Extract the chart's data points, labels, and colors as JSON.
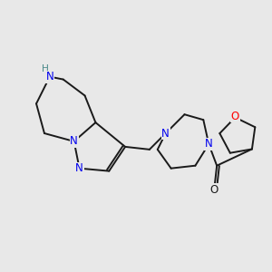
{
  "background_color": "#e8e8e8",
  "bond_color": "#1a1a1a",
  "N_color": "#0000ee",
  "O_color": "#ff0000",
  "H_color": "#4a8a8a",
  "figsize": [
    3.0,
    3.0
  ],
  "dpi": 100,
  "lw": 1.4,
  "fs": 8.5,
  "xlim": [
    0,
    10
  ],
  "ylim": [
    0,
    10
  ]
}
